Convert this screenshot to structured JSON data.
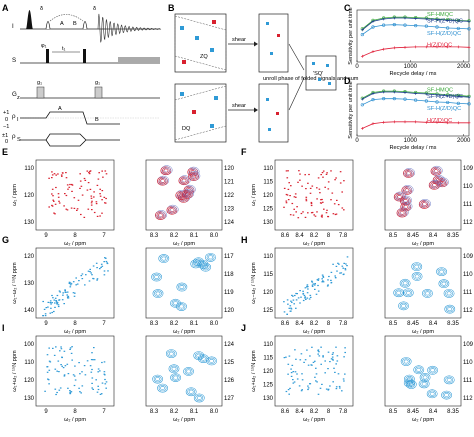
{
  "figure": {
    "panels": {
      "A": "A",
      "B": "B",
      "C": "C",
      "D": "D",
      "E": "E",
      "F": "F",
      "G": "G",
      "H": "H",
      "I": "I",
      "J": "J"
    },
    "pulse_sequence": {
      "channels": [
        "I",
        "S",
        "G",
        "ρ",
        "ρ"
      ],
      "channel_subscripts": [
        "",
        "",
        "z",
        "I",
        "S"
      ],
      "labels": {
        "delta1": "δ",
        "delta2": "δ",
        "A": "A",
        "B": "B",
        "phi1": "φ₁",
        "t1": "t₁",
        "g1a": "g₁",
        "g1b": "g₁",
        "rho_A": "A",
        "rho_B": "B"
      },
      "rho_ticks": [
        "+1",
        "0",
        "−1",
        "±1",
        "0"
      ]
    },
    "schematic": {
      "ZQ": "ZQ",
      "DQ": "DQ",
      "shear1": "shear",
      "shear2": "shear",
      "unroll": "unroll phase of folded signals and sum",
      "SQ": "'SQ'"
    },
    "chart_data": [
      {
        "panel": "C",
        "type": "line",
        "xlabel": "Recycle delay / ms",
        "ylabel": "Sensitivity per unit time",
        "x_ticks": [
          0,
          1000,
          2000
        ],
        "xlim": [
          0,
          2100
        ],
        "ylim": [
          0,
          1.1
        ],
        "series": [
          {
            "name": "SF-HMQC",
            "color": "#3aa83a",
            "x": [
              100,
              300,
              500,
              700,
              900,
              1100,
              1300,
              1500,
              1700,
              1900,
              2100
            ],
            "values": [
              0.7,
              0.88,
              0.93,
              0.95,
              0.95,
              0.94,
              0.93,
              0.91,
              0.9,
              0.88,
              0.87
            ]
          },
          {
            "name": "SF-H(Z+D)QC",
            "color": "#1f3f8f",
            "x": [
              100,
              300,
              500,
              700,
              900,
              1100,
              1300,
              1500,
              1700,
              1900,
              2100
            ],
            "values": [
              0.68,
              0.86,
              0.91,
              0.93,
              0.93,
              0.92,
              0.91,
              0.9,
              0.88,
              0.87,
              0.86
            ]
          },
          {
            "name": "SF-H(Z/D)QC",
            "color": "#2d8fd0",
            "x": [
              100,
              300,
              500,
              700,
              900,
              1100,
              1300,
              1500,
              1700,
              1900,
              2100
            ],
            "values": [
              0.58,
              0.74,
              0.78,
              0.79,
              0.78,
              0.77,
              0.76,
              0.74,
              0.72,
              0.71,
              0.7
            ]
          },
          {
            "name": "H(Z/D)QC",
            "color": "#e0203a",
            "x": [
              100,
              300,
              500,
              700,
              900,
              1100,
              1300,
              1500,
              1700,
              1900,
              2100
            ],
            "values": [
              0.12,
              0.22,
              0.27,
              0.3,
              0.31,
              0.32,
              0.32,
              0.32,
              0.32,
              0.32,
              0.31
            ]
          }
        ]
      },
      {
        "panel": "D",
        "type": "line",
        "xlabel": "Recycle delay / ms",
        "ylabel": "Sensitivity per unit time",
        "x_ticks": [
          0,
          1000,
          2000
        ],
        "xlim": [
          0,
          2100
        ],
        "ylim": [
          0,
          1.1
        ],
        "series": [
          {
            "name": "SF-HMQC",
            "color": "#3aa83a",
            "x": [
              100,
              300,
              500,
              700,
              900,
              1100,
              1300,
              1500,
              1700,
              1900,
              2100
            ],
            "values": [
              0.8,
              0.92,
              0.95,
              0.95,
              0.94,
              0.92,
              0.91,
              0.89,
              0.87,
              0.86,
              0.84
            ]
          },
          {
            "name": "SF-H(Z+D)QC",
            "color": "#1f3f8f",
            "x": [
              100,
              300,
              500,
              700,
              900,
              1100,
              1300,
              1500,
              1700,
              1900,
              2100
            ],
            "values": [
              0.78,
              0.9,
              0.93,
              0.93,
              0.92,
              0.9,
              0.89,
              0.87,
              0.85,
              0.84,
              0.82
            ]
          },
          {
            "name": "SF-H(Z/D)QC",
            "color": "#2d8fd0",
            "x": [
              100,
              300,
              500,
              700,
              900,
              1100,
              1300,
              1500,
              1700,
              1900,
              2100
            ],
            "values": [
              0.66,
              0.77,
              0.79,
              0.79,
              0.78,
              0.76,
              0.74,
              0.72,
              0.71,
              0.69,
              0.68
            ]
          },
          {
            "name": "H(Z/D)QC",
            "color": "#e0203a",
            "x": [
              100,
              300,
              500,
              700,
              900,
              1100,
              1300,
              1500,
              1700,
              1900,
              2100
            ],
            "values": [
              0.16,
              0.26,
              0.29,
              0.3,
              0.3,
              0.3,
              0.29,
              0.29,
              0.28,
              0.28,
              0.28
            ]
          }
        ]
      }
    ],
    "spectra": [
      {
        "panel": "E",
        "ylabel": "ω₁ / ppm",
        "xlabel": "ω₂ / ppm",
        "yticks": [
          "110",
          "120",
          "130"
        ],
        "xticks": [
          "9",
          "8",
          "7"
        ],
        "zoom_yticks": [
          "120",
          "121",
          "122",
          "123",
          "124"
        ],
        "zoom_xticks": [
          "8.3",
          "8.2",
          "8.1",
          "8.0"
        ],
        "color": "#d8202e",
        "overlay": "#6b7bc8"
      },
      {
        "panel": "F",
        "ylabel": "ω₁ / ppm",
        "xlabel": "ω₂ / ppm",
        "yticks": [
          "110",
          "115",
          "120",
          "125",
          "130"
        ],
        "xticks": [
          "8.6",
          "8.4",
          "8.2",
          "8",
          "7.8"
        ],
        "zoom_yticks": [
          "109",
          "110",
          "111",
          "112"
        ],
        "zoom_xticks": [
          "8.5",
          "8.45",
          "8.4",
          "8.35"
        ],
        "color": "#d8202e",
        "overlay": "#6b7bc8"
      },
      {
        "panel": "G",
        "ylabel": "ω₁−ω₂ / ¹⁵N ppm",
        "xlabel": "ω₂ / ppm",
        "yticks": [
          "120",
          "130",
          "140"
        ],
        "xticks": [
          "9",
          "8",
          "7"
        ],
        "zoom_yticks": [
          "117",
          "118",
          "119",
          "120"
        ],
        "zoom_xticks": [
          "8.3",
          "8.2",
          "8.1",
          "8.0"
        ],
        "color": "#2f9ad6"
      },
      {
        "panel": "H",
        "ylabel": "ω₁−ω₂ / ¹⁵N ppm",
        "xlabel": "ω₂ / ppm",
        "yticks": [
          "110",
          "115",
          "120",
          "125"
        ],
        "xticks": [
          "8.6",
          "8.4",
          "8.2",
          "8",
          "7.8"
        ],
        "zoom_yticks": [
          "109",
          "110",
          "111",
          "112"
        ],
        "zoom_xticks": [
          "8.5",
          "8.45",
          "8.4",
          "8.35"
        ],
        "color": "#2f9ad6"
      },
      {
        "panel": "I",
        "ylabel": "ω₁+ω₂ / ¹⁵N ppm",
        "xlabel": "ω₂ / ppm",
        "yticks": [
          "100",
          "110",
          "120",
          "130"
        ],
        "xticks": [
          "9",
          "8",
          "7"
        ],
        "zoom_yticks": [
          "124",
          "125",
          "126",
          "127"
        ],
        "zoom_xticks": [
          "8.3",
          "8.2",
          "8.1",
          "8.0"
        ],
        "color": "#2f9ad6"
      },
      {
        "panel": "J",
        "ylabel": "ω₁+ω₂ / ¹⁵N ppm",
        "xlabel": "ω₂ / ppm",
        "yticks": [
          "110",
          "115",
          "120",
          "125",
          "130"
        ],
        "xticks": [
          "8.6",
          "8.4",
          "8.2",
          "8",
          "7.8"
        ],
        "zoom_yticks": [
          "109",
          "110",
          "111",
          "112"
        ],
        "zoom_xticks": [
          "8.5",
          "8.45",
          "8.4",
          "8.35"
        ],
        "color": "#2f9ad6"
      }
    ]
  }
}
